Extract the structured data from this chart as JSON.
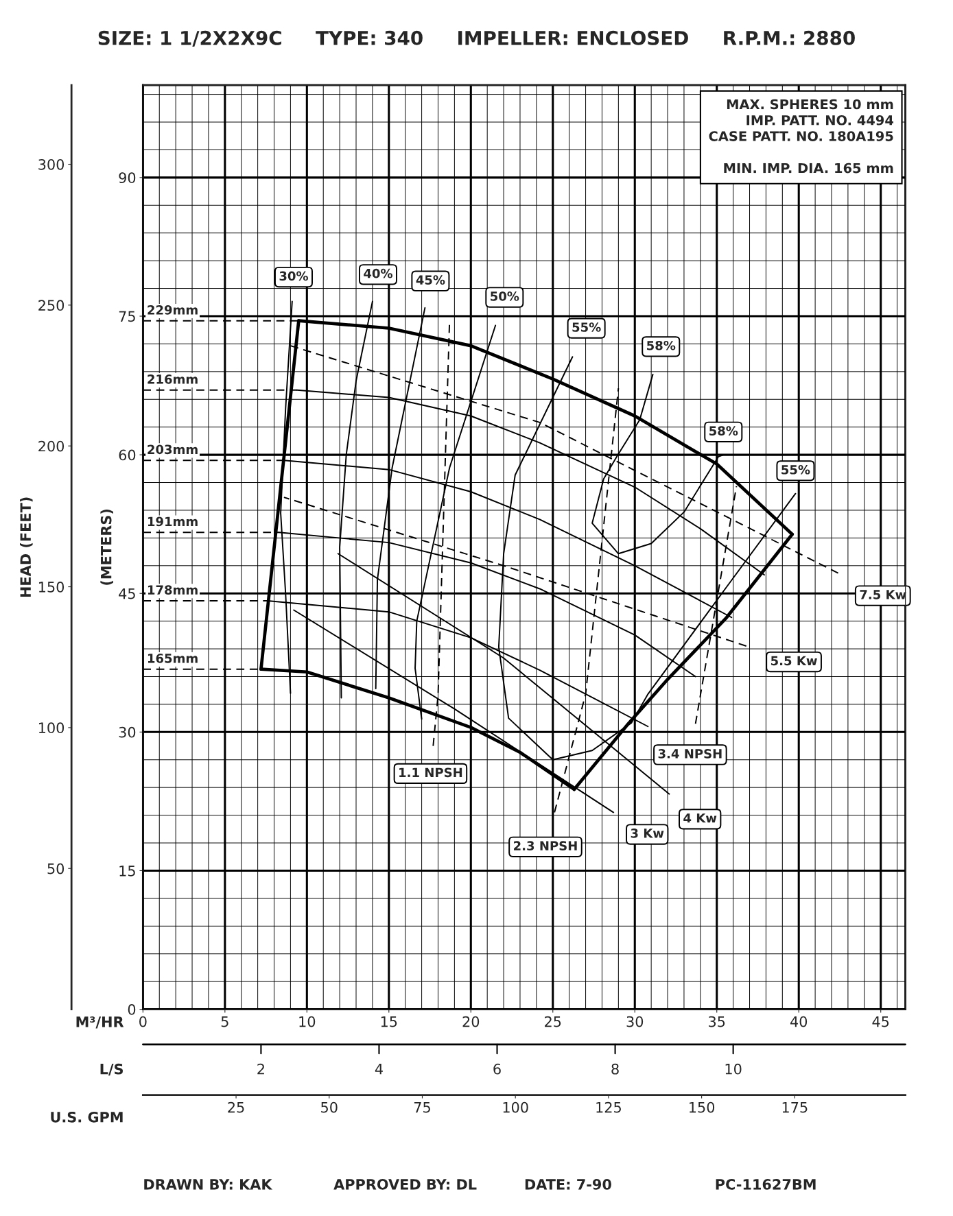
{
  "chart_data": {
    "type": "line",
    "title": "SIZE: 1 1/2X2X9C     TYPE: 340     IMPELLER: ENCLOSED     R.P.M.: 2880",
    "xlabel": "M³/HR",
    "ylabel": "(METERS)",
    "y2label": "HEAD (FEET)",
    "x2label": "U.S. GPM",
    "xlim": [
      0,
      46.5
    ],
    "xticks": [
      0,
      5,
      10,
      15,
      20,
      25,
      30,
      35,
      40,
      45
    ],
    "ylim": [
      0,
      100
    ],
    "yticks": [
      0,
      15,
      30,
      45,
      60,
      75,
      90
    ],
    "x2lim": [
      0,
      204.7
    ],
    "x2ticks": [
      25,
      50,
      75,
      100,
      125,
      150,
      175
    ],
    "y2lim": [
      0,
      328.1
    ],
    "y2ticks": [
      50,
      100,
      150,
      200,
      250,
      300
    ],
    "grid": true,
    "series": [
      {
        "color": "#000000",
        "line_style": "solid",
        "x": [
          9.5,
          15,
          20,
          25,
          30,
          35,
          39.6
        ],
        "values": [
          74.5,
          73.7,
          71.8,
          68.2,
          64.2,
          59.0,
          51.4
        ]
      },
      {
        "color": "#000000",
        "line_style": "solid",
        "x": [
          26.3,
          29.6,
          31.9,
          35.6,
          39.6
        ],
        "values": [
          23.8,
          30.9,
          35.5,
          42.4,
          51.4
        ]
      },
      {
        "color": "#000000",
        "line_style": "solid",
        "x": [
          7.2,
          10,
          15,
          20,
          23,
          26.3
        ],
        "values": [
          36.8,
          36.5,
          33.7,
          30.5,
          27.8,
          23.8
        ]
      },
      {
        "color": "#000000",
        "line_style": "solid",
        "x": [
          7.2,
          9.5
        ],
        "values": [
          36.8,
          74.5
        ]
      },
      {
        "color": "#000000",
        "line_style": "solid",
        "x": [
          9.4,
          15,
          20,
          24.2,
          30,
          34,
          37.9
        ],
        "values": [
          67.0,
          66.2,
          64.2,
          61.3,
          56.5,
          52.0,
          47.0
        ]
      },
      {
        "color": "#000000",
        "line_style": "solid",
        "x": [
          8.6,
          15,
          20,
          24.2,
          30,
          35.9
        ],
        "values": [
          59.4,
          58.4,
          56.0,
          53.0,
          48.0,
          42.4
        ]
      },
      {
        "color": "#000000",
        "line_style": "solid",
        "x": [
          8.3,
          15,
          20,
          24.2,
          30,
          33.7
        ],
        "values": [
          51.6,
          50.5,
          48.3,
          45.5,
          40.5,
          36.0
        ]
      },
      {
        "color": "#000000",
        "line_style": "solid",
        "x": [
          7.6,
          15,
          20,
          24.2,
          30.8
        ],
        "values": [
          44.2,
          43.0,
          40.2,
          36.7,
          30.6
        ]
      },
      {
        "name": "229mm",
        "color": "#000000",
        "line_style": "dashed",
        "x": [
          0,
          9.5
        ],
        "values": [
          74.5,
          74.5
        ]
      },
      {
        "name": "216mm",
        "color": "#000000",
        "line_style": "dashed",
        "x": [
          0,
          9.4
        ],
        "values": [
          67.0,
          67.0
        ]
      },
      {
        "name": "203mm",
        "color": "#000000",
        "line_style": "dashed",
        "x": [
          0,
          8.6
        ],
        "values": [
          59.4,
          59.4
        ]
      },
      {
        "name": "191mm",
        "color": "#000000",
        "line_style": "dashed",
        "x": [
          0,
          8.3
        ],
        "values": [
          51.6,
          51.6
        ]
      },
      {
        "name": "178mm",
        "color": "#000000",
        "line_style": "dashed",
        "x": [
          0,
          7.6
        ],
        "values": [
          44.2,
          44.2
        ]
      },
      {
        "name": "165mm",
        "color": "#000000",
        "line_style": "dashed",
        "x": [
          0,
          7.2
        ],
        "values": [
          36.8,
          36.8
        ]
      },
      {
        "name": "30%",
        "color": "#000000",
        "line_style": "solid",
        "x": [
          9.1,
          8.7,
          8.4,
          8.7,
          9.0
        ],
        "values": [
          76.6,
          65.0,
          53.7,
          45.0,
          34.2
        ]
      },
      {
        "name": "40%",
        "color": "#000000",
        "line_style": "solid",
        "x": [
          14.0,
          13.0,
          12.4,
          12.0,
          12.1
        ],
        "values": [
          76.6,
          68.0,
          60.0,
          50.0,
          33.7
        ]
      },
      {
        "name": "45%",
        "color": "#000000",
        "line_style": "solid",
        "x": [
          17.2,
          15.2,
          14.3,
          14.2
        ],
        "values": [
          75.9,
          58.6,
          46.5,
          34.7
        ]
      },
      {
        "name": "50%",
        "color": "#000000",
        "line_style": "solid",
        "x": [
          21.5,
          18.7,
          16.7,
          16.6,
          17.0
        ],
        "values": [
          74.0,
          58.6,
          42.0,
          36.9,
          31.4
        ]
      },
      {
        "name": "55%",
        "color": "#000000",
        "line_style": "solid",
        "x": [
          26.2,
          22.7,
          22.0,
          21.7,
          22.3,
          25.0,
          27.4,
          29.8,
          30.8,
          35.6,
          39.8
        ],
        "values": [
          70.6,
          57.8,
          49.3,
          39.2,
          31.5,
          27.0,
          28.0,
          31.0,
          34.1,
          45.7,
          55.8
        ]
      },
      {
        "name": "58%",
        "color": "#000000",
        "line_style": "solid",
        "x": [
          31.1,
          30.3,
          28.9,
          28.1,
          27.4,
          29.0,
          31.0,
          33.0,
          35.1,
          35.4
        ],
        "values": [
          68.7,
          63.8,
          59.8,
          57.4,
          52.6,
          49.3,
          50.4,
          53.8,
          59.8,
          60.0
        ]
      },
      {
        "name": "7.5 Kw",
        "color": "#000000",
        "line_style": "dashed",
        "x": [
          42.4,
          24.2,
          9.0
        ],
        "values": [
          47.2,
          63.5,
          71.8
        ]
      },
      {
        "name": "5.5 Kw",
        "color": "#000000",
        "line_style": "dashed",
        "x": [
          36.8,
          22.0,
          8.6
        ],
        "values": [
          39.3,
          48.0,
          55.4
        ]
      },
      {
        "name": "4 Kw",
        "color": "#000000",
        "line_style": "solid",
        "x": [
          32.1,
          22.0,
          11.9
        ],
        "values": [
          23.3,
          38.0,
          49.3
        ]
      },
      {
        "name": "3 Kw",
        "color": "#000000",
        "line_style": "solid",
        "x": [
          28.7,
          19.0,
          9.2
        ],
        "values": [
          21.3,
          32.5,
          43.2
        ]
      },
      {
        "name": "1.1 NPSH",
        "color": "#000000",
        "line_style": "dashed",
        "x": [
          17.7,
          18.0,
          18.7
        ],
        "values": [
          28.5,
          34.0,
          74.5
        ]
      },
      {
        "name": "2.3 NPSH",
        "color": "#000000",
        "line_style": "dashed",
        "x": [
          25.1,
          27.0,
          29.0
        ],
        "values": [
          21.3,
          34.1,
          67.2
        ]
      },
      {
        "name": "3.4 NPSH",
        "color": "#000000",
        "line_style": "dashed",
        "x": [
          33.7,
          36.2
        ],
        "values": [
          30.9,
          56.6
        ]
      }
    ],
    "annotations": [
      "MAX. SPHERES 10 mm",
      "IMP. PATT. NO. 4494",
      "CASE PATT. NO. 180A195",
      "MIN. IMP. DIA. 165 mm",
      "DRAWN BY: KAK",
      "APPROVED BY: DL",
      "DATE: 7-90",
      "PC-11627BM",
      "L/S",
      {
        "text": "55%",
        "x": 39.8,
        "y": 55.8
      },
      {
        "text": "58%",
        "x": 35.4,
        "y": 60.0
      },
      {
        "text": "2",
        "x": 7.2
      },
      {
        "text": "4",
        "x": 14.4
      },
      {
        "text": "6",
        "x": 21.6
      },
      {
        "text": "8",
        "x": 28.8
      },
      {
        "text": "10",
        "x": 36.0
      }
    ]
  }
}
